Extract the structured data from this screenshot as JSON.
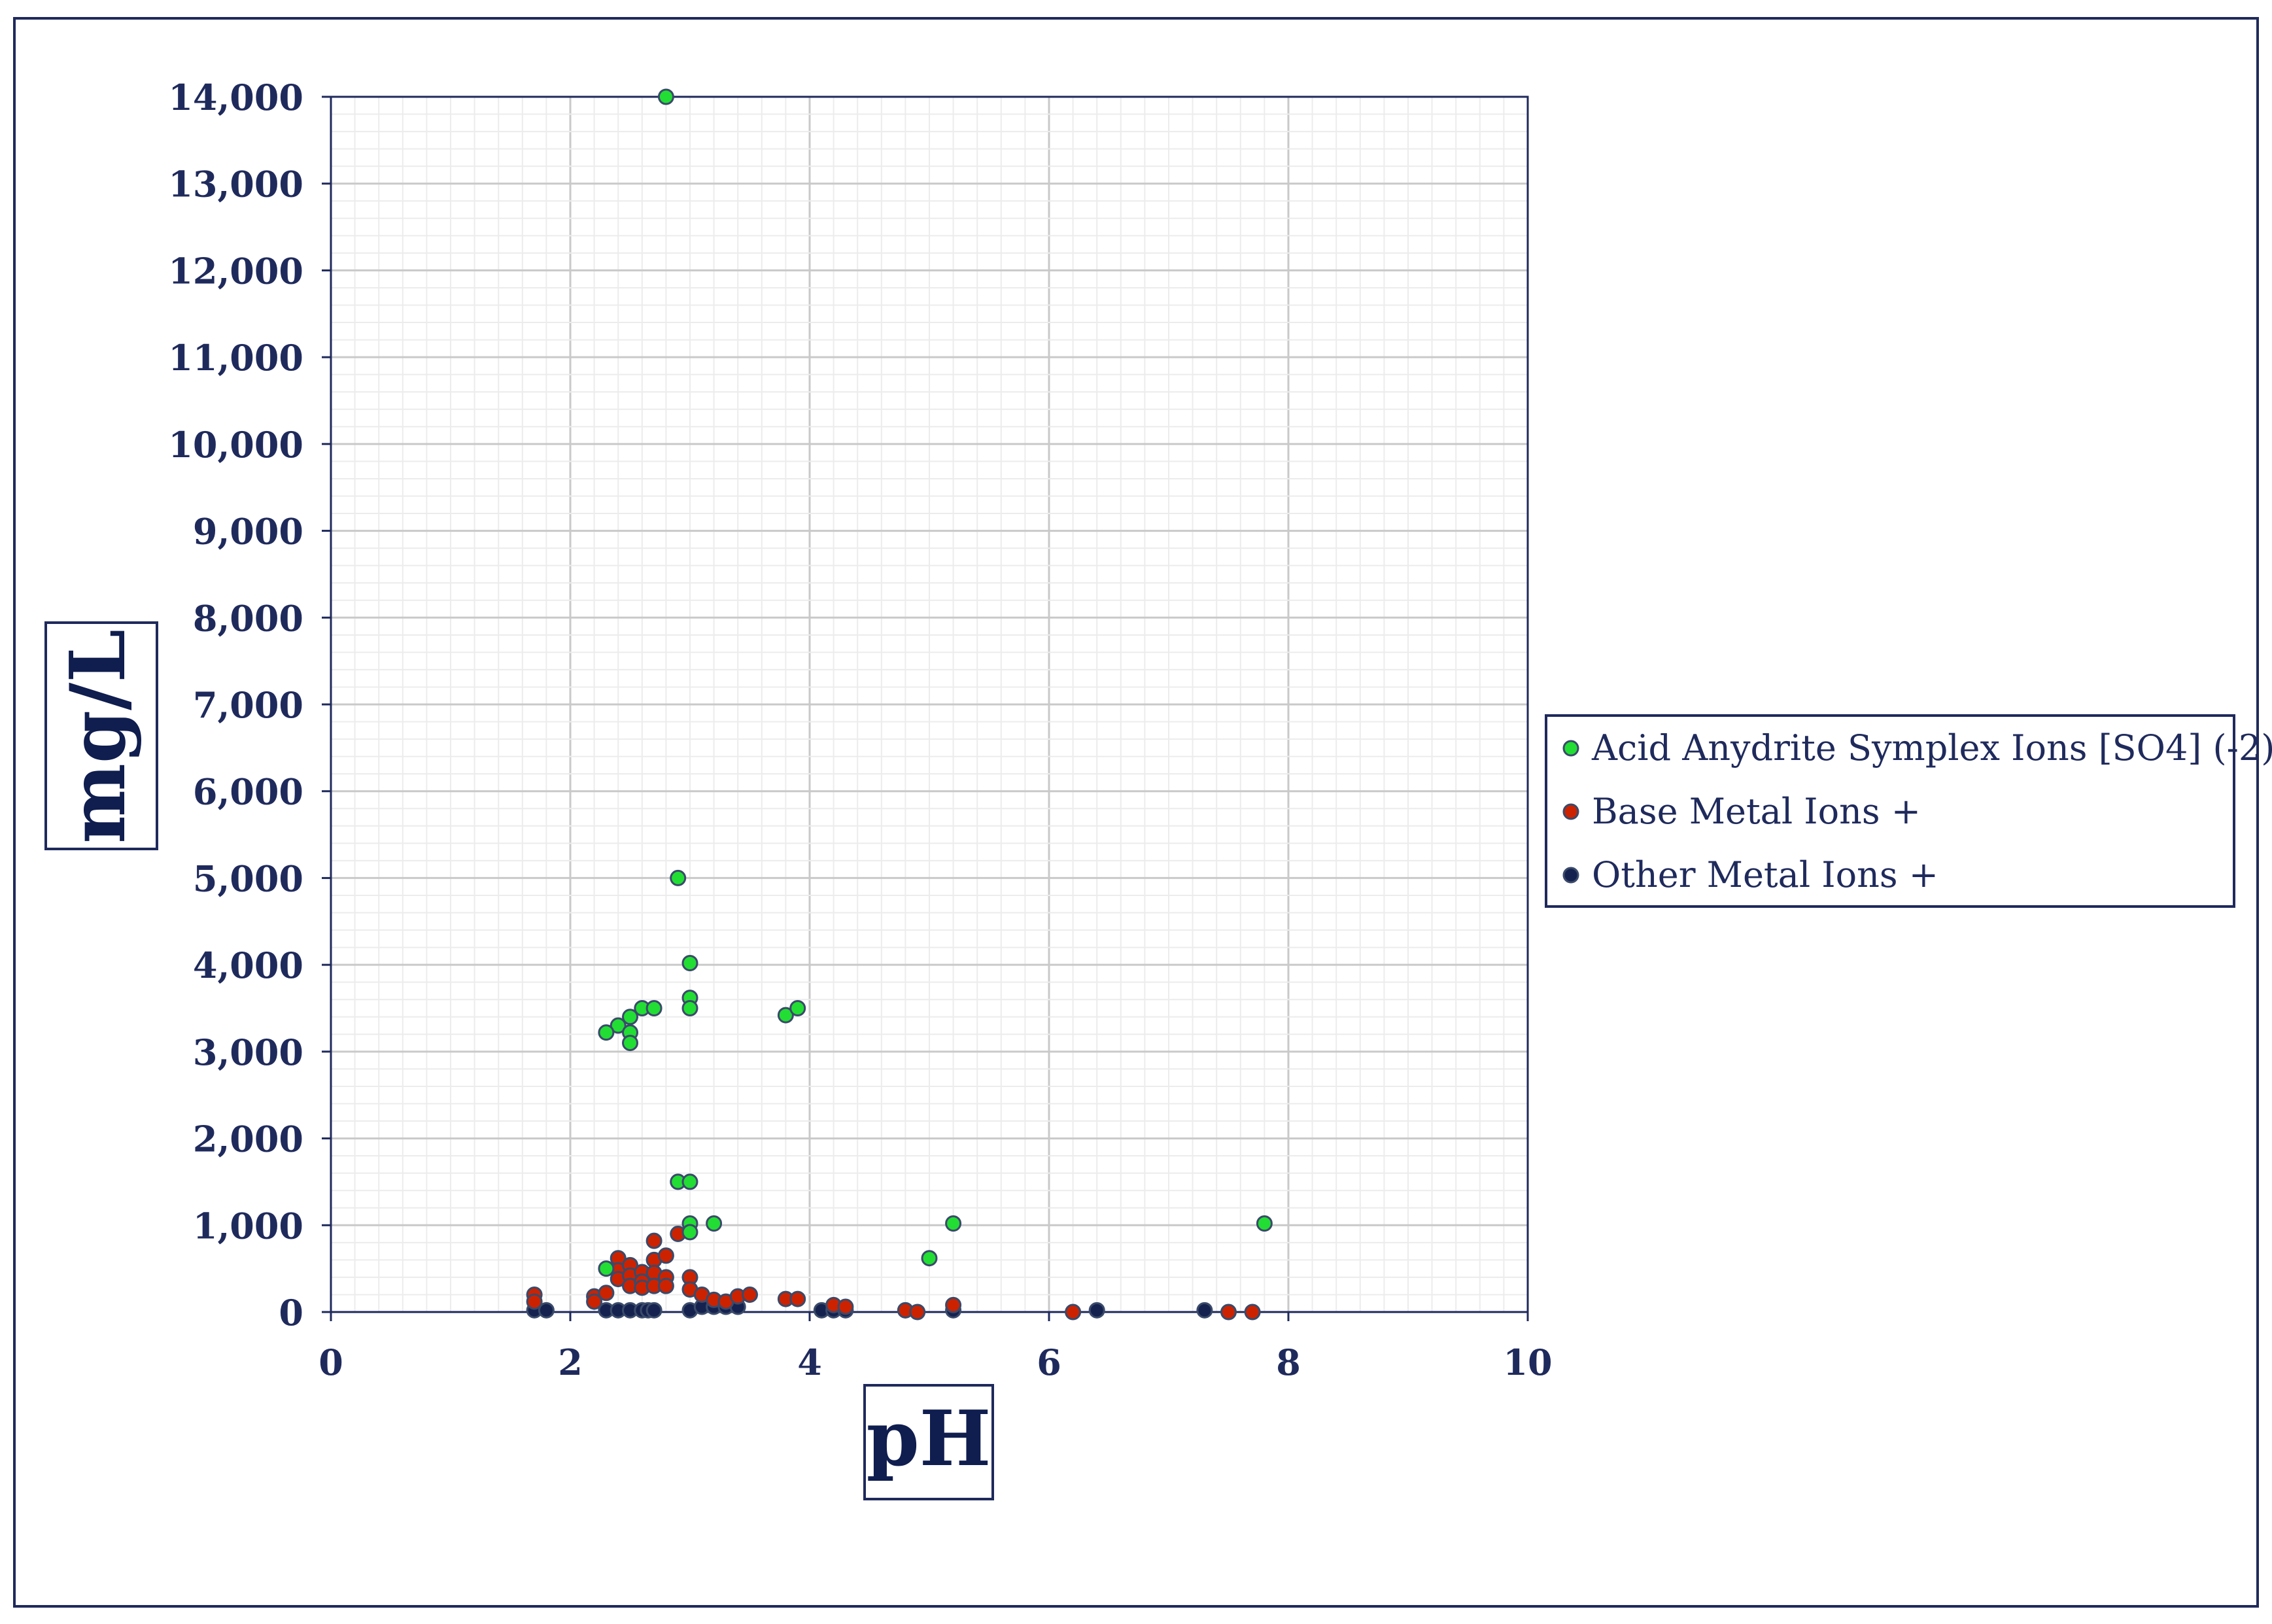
{
  "chart_data": {
    "type": "scatter",
    "title": "",
    "xlabel": "pH",
    "ylabel": "mg/L",
    "xlim": [
      0,
      10
    ],
    "ylim": [
      0,
      14000
    ],
    "x_ticks": [
      "0",
      "2",
      "4",
      "6",
      "8",
      "10"
    ],
    "y_ticks": [
      "0",
      "1,000",
      "2,000",
      "3,000",
      "4,000",
      "5,000",
      "6,000",
      "7,000",
      "8,000",
      "9,000",
      "10,000",
      "11,000",
      "12,000",
      "13,000",
      "14,000"
    ],
    "grid": "on (major and minor)",
    "legend_position": "right",
    "series": [
      {
        "name": "Acid Anydrite Symplex Ions [SO4] (-2)",
        "color": "#22dd33",
        "points": [
          [
            2.8,
            14000
          ],
          [
            2.9,
            5000
          ],
          [
            3.0,
            4020
          ],
          [
            3.0,
            3620
          ],
          [
            3.0,
            3500
          ],
          [
            2.6,
            3500
          ],
          [
            2.7,
            3500
          ],
          [
            2.5,
            3400
          ],
          [
            2.4,
            3300
          ],
          [
            2.5,
            3220
          ],
          [
            2.3,
            3220
          ],
          [
            2.5,
            3100
          ],
          [
            3.8,
            3420
          ],
          [
            3.9,
            3500
          ],
          [
            2.9,
            1500
          ],
          [
            3.0,
            1500
          ],
          [
            3.0,
            1020
          ],
          [
            3.2,
            1020
          ],
          [
            3.0,
            920
          ],
          [
            5.2,
            1020
          ],
          [
            5.0,
            620
          ],
          [
            7.8,
            1020
          ],
          [
            2.3,
            500
          ]
        ]
      },
      {
        "name": "Base Metal Ions +",
        "color": "#cc2200",
        "points": [
          [
            1.7,
            200
          ],
          [
            1.7,
            120
          ],
          [
            2.2,
            180
          ],
          [
            2.2,
            120
          ],
          [
            2.3,
            220
          ],
          [
            2.4,
            620
          ],
          [
            2.4,
            480
          ],
          [
            2.4,
            380
          ],
          [
            2.5,
            540
          ],
          [
            2.5,
            420
          ],
          [
            2.5,
            300
          ],
          [
            2.6,
            460
          ],
          [
            2.6,
            350
          ],
          [
            2.6,
            280
          ],
          [
            2.7,
            820
          ],
          [
            2.7,
            600
          ],
          [
            2.7,
            450
          ],
          [
            2.7,
            300
          ],
          [
            2.8,
            650
          ],
          [
            2.8,
            400
          ],
          [
            2.8,
            300
          ],
          [
            2.9,
            900
          ],
          [
            3.0,
            400
          ],
          [
            3.0,
            260
          ],
          [
            3.1,
            200
          ],
          [
            3.2,
            140
          ],
          [
            3.3,
            120
          ],
          [
            3.4,
            180
          ],
          [
            3.5,
            200
          ],
          [
            3.8,
            150
          ],
          [
            3.9,
            150
          ],
          [
            4.2,
            80
          ],
          [
            4.3,
            60
          ],
          [
            4.8,
            20
          ],
          [
            4.9,
            0
          ],
          [
            5.2,
            80
          ],
          [
            6.2,
            0
          ],
          [
            7.5,
            0
          ],
          [
            7.7,
            0
          ]
        ]
      },
      {
        "name": "Other Metal Ions +",
        "color": "#15224f",
        "points": [
          [
            1.7,
            20
          ],
          [
            1.8,
            20
          ],
          [
            2.3,
            20
          ],
          [
            2.4,
            20
          ],
          [
            2.5,
            20
          ],
          [
            2.6,
            20
          ],
          [
            2.65,
            20
          ],
          [
            2.7,
            20
          ],
          [
            3.0,
            20
          ],
          [
            3.1,
            60
          ],
          [
            3.2,
            60
          ],
          [
            3.3,
            60
          ],
          [
            3.4,
            60
          ],
          [
            4.1,
            20
          ],
          [
            4.2,
            20
          ],
          [
            4.3,
            20
          ],
          [
            4.8,
            20
          ],
          [
            5.2,
            20
          ],
          [
            6.4,
            20
          ],
          [
            7.3,
            20
          ]
        ]
      }
    ]
  }
}
